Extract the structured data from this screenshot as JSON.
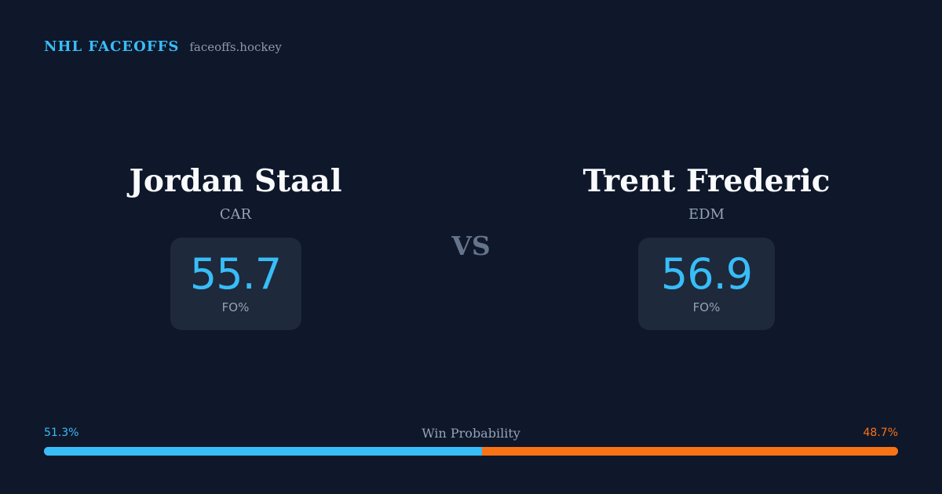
{
  "brand": {
    "title": "NHL FACEOFFS",
    "domain": "faceoffs.hockey"
  },
  "players": [
    {
      "name": "Jordan Staal",
      "team": "CAR",
      "stat_value": "55.7",
      "stat_label": "FO%"
    },
    {
      "name": "Trent Frederic",
      "team": "EDM",
      "stat_value": "56.9",
      "stat_label": "FO%"
    }
  ],
  "vs_label": "VS",
  "win_probability": {
    "title": "Win Probability",
    "left_label": "51.3%",
    "right_label": "48.7%",
    "left_value": 51.3,
    "right_value": 48.7
  },
  "colors": {
    "background": "#0f172a",
    "card": "#1e293b",
    "accent_blue": "#38bdf8",
    "accent_orange": "#f97316",
    "muted_text": "#94a3b8"
  }
}
